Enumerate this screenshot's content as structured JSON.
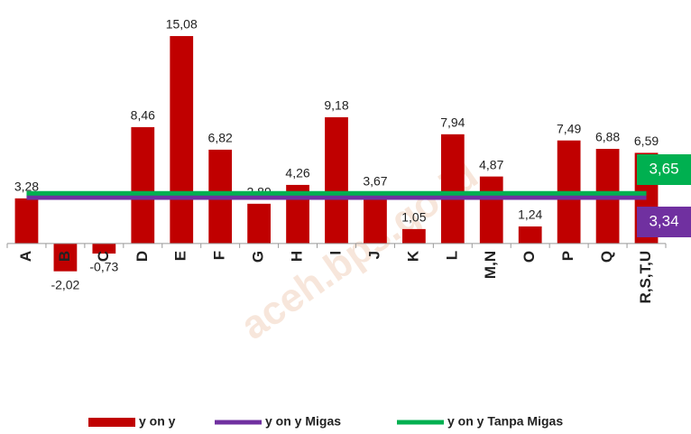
{
  "chart_data": {
    "type": "bar",
    "categories": [
      "A",
      "B",
      "C",
      "D",
      "E",
      "F",
      "G",
      "H",
      "I",
      "J",
      "K",
      "L",
      "M,N",
      "O",
      "P",
      "Q",
      "R,S,T,U"
    ],
    "series": [
      {
        "name": "y on y",
        "color": "#c00000",
        "values": [
          3.28,
          -2.02,
          -0.73,
          8.46,
          15.08,
          6.82,
          2.89,
          4.26,
          9.18,
          3.67,
          1.05,
          7.94,
          4.87,
          1.24,
          7.49,
          6.88,
          6.59
        ],
        "value_labels": [
          "3,28",
          "-2,02",
          "-0,73",
          "8,46",
          "15,08",
          "6,82",
          "2,89",
          "4,26",
          "9,18",
          "3,67",
          "1,05",
          "7,94",
          "4,87",
          "1,24",
          "7,49",
          "6,88",
          "6,59"
        ]
      }
    ],
    "lines": [
      {
        "name": "y on y Migas",
        "color": "#7030a0",
        "value": 3.34,
        "value_label": "3,34"
      },
      {
        "name": "y on y Tanpa Migas",
        "color": "#00b050",
        "value": 3.65,
        "value_label": "3,65"
      }
    ],
    "ylim": [
      -2.5,
      17.7
    ],
    "watermark": "aceh.bps.go.id"
  }
}
